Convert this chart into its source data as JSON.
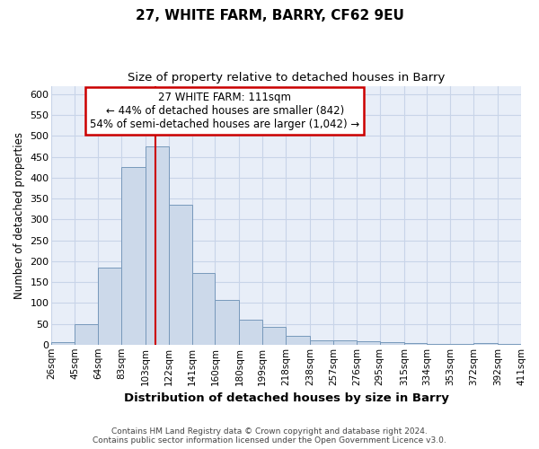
{
  "title": "27, WHITE FARM, BARRY, CF62 9EU",
  "subtitle": "Size of property relative to detached houses in Barry",
  "xlabel": "Distribution of detached houses by size in Barry",
  "ylabel": "Number of detached properties",
  "bin_edges": [
    26,
    45,
    64,
    83,
    103,
    122,
    141,
    160,
    180,
    199,
    218,
    238,
    257,
    276,
    295,
    315,
    334,
    353,
    372,
    392,
    411
  ],
  "bar_heights": [
    5,
    50,
    185,
    425,
    475,
    335,
    172,
    107,
    60,
    43,
    22,
    10,
    10,
    8,
    5,
    3,
    2,
    2,
    3,
    2
  ],
  "bar_color": "#ccd9ea",
  "bar_edge_color": "#7799bb",
  "bar_edge_width": 0.7,
  "property_size": 111,
  "red_line_color": "#cc0000",
  "annotation_line1": "27 WHITE FARM: 111sqm",
  "annotation_line2": "← 44% of detached houses are smaller (842)",
  "annotation_line3": "54% of semi-detached houses are larger (1,042) →",
  "annotation_box_color": "#ffffff",
  "annotation_box_edge_color": "#cc0000",
  "ylim": [
    0,
    620
  ],
  "yticks": [
    0,
    50,
    100,
    150,
    200,
    250,
    300,
    350,
    400,
    450,
    500,
    550,
    600
  ],
  "grid_color": "#c8d4e8",
  "background_color": "#e8eef8",
  "footer_line1": "Contains HM Land Registry data © Crown copyright and database right 2024.",
  "footer_line2": "Contains public sector information licensed under the Open Government Licence v3.0."
}
